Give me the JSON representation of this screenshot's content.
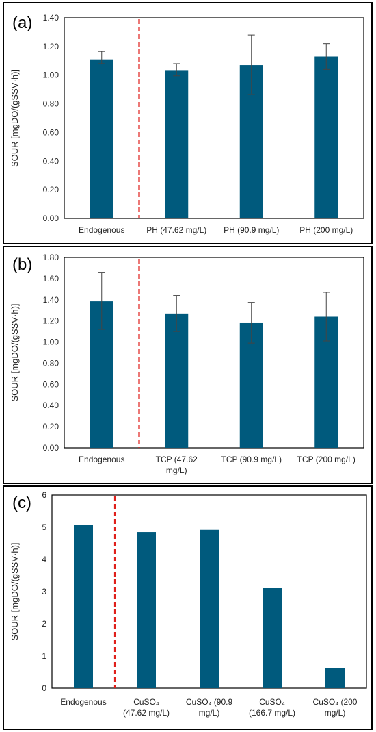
{
  "chart_data": [
    {
      "type": "bar",
      "panel_label": "(a)",
      "ylabel": "SOUR [mgDO/(gSSV·h)]",
      "ylim": [
        0,
        1.4
      ],
      "yticks": [
        "0.00",
        "0.20",
        "0.40",
        "0.60",
        "0.80",
        "1.00",
        "1.20",
        "1.40"
      ],
      "categories": [
        [
          "Endogenous"
        ],
        [
          "PH (47.62 mg/L)"
        ],
        [
          "PH (90.9 mg/L)"
        ],
        [
          "PH (200 mg/L)"
        ]
      ],
      "values": [
        1.11,
        1.035,
        1.07,
        1.13
      ],
      "error_bars": [
        [
          1.08,
          1.165
        ],
        [
          0.995,
          1.08
        ],
        [
          0.865,
          1.28
        ],
        [
          1.04,
          1.22
        ]
      ],
      "bar_color": "#005a7d",
      "divider_after_index": 0
    },
    {
      "type": "bar",
      "panel_label": "(b)",
      "ylabel": "SOUR [mgDO/(gSSV·h)]",
      "ylim": [
        0,
        1.8
      ],
      "yticks": [
        "0.00",
        "0.20",
        "0.40",
        "0.60",
        "0.80",
        "1.00",
        "1.20",
        "1.40",
        "1.60",
        "1.80"
      ],
      "categories": [
        [
          "Endogenous"
        ],
        [
          "TCP (47.62",
          "mg/L)"
        ],
        [
          "TCP (90.9 mg/L)"
        ],
        [
          "TCP (200 mg/L)"
        ]
      ],
      "values": [
        1.385,
        1.27,
        1.185,
        1.24
      ],
      "error_bars": [
        [
          1.12,
          1.66
        ],
        [
          1.1,
          1.44
        ],
        [
          0.99,
          1.375
        ],
        [
          1.01,
          1.47
        ]
      ],
      "bar_color": "#005a7d",
      "divider_after_index": 0
    },
    {
      "type": "bar",
      "panel_label": "(c)",
      "ylabel": "SOUR [mgDO/(gSSV·h)]",
      "ylim": [
        0,
        6
      ],
      "yticks": [
        "0",
        "1",
        "2",
        "3",
        "4",
        "5",
        "6"
      ],
      "categories": [
        [
          "Endogenous"
        ],
        [
          "CuSO₄",
          "(47.62 mg/L)"
        ],
        [
          "CuSO₄ (90.9",
          "mg/L)"
        ],
        [
          "CuSO₄",
          "(166.7 mg/L)"
        ],
        [
          "CuSO₄ (200",
          "mg/L)"
        ]
      ],
      "values": [
        5.07,
        4.85,
        4.92,
        3.12,
        0.62
      ],
      "error_bars": [],
      "bar_color": "#005a7d",
      "divider_after_index": 0
    }
  ]
}
